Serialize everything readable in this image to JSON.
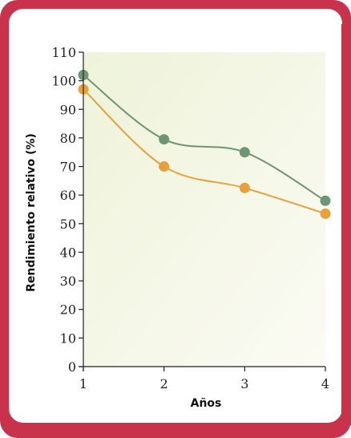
{
  "chart_data": {
    "type": "line",
    "x": [
      1,
      2,
      3,
      4
    ],
    "xlabel": "Años",
    "ylabel": "Rendimiento relativo (%)",
    "ylim": [
      0,
      110
    ],
    "yticks": [
      0,
      10,
      20,
      30,
      40,
      50,
      60,
      70,
      80,
      90,
      100,
      110
    ],
    "xticks": [
      1,
      2,
      3,
      4
    ],
    "grid": false,
    "series": [
      {
        "values": [
          102,
          79.5,
          75,
          58
        ],
        "color": "#6f9574"
      },
      {
        "values": [
          97,
          70,
          62.5,
          53.5
        ],
        "color": "#eaa03a"
      }
    ],
    "plot_background": "#f3f5e6"
  }
}
